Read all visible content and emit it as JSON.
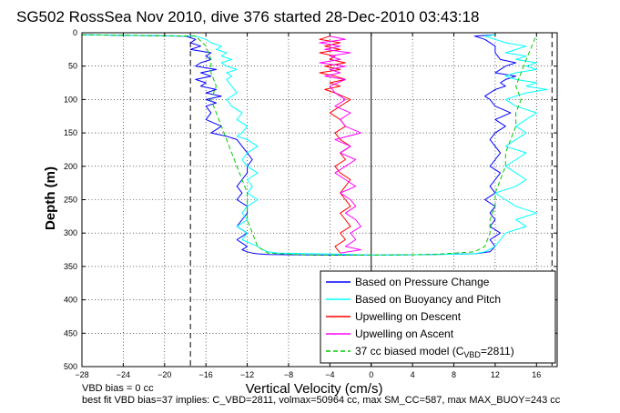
{
  "chart_data": {
    "type": "line",
    "title": "SG502 RossSea Nov 2010, dive 376 started 28-Dec-2010 03:43:18",
    "xlabel": "Vertical Velocity (cm/s)",
    "ylabel": "Depth (m)",
    "xlim": [
      -28,
      18
    ],
    "ylim": [
      500,
      0
    ],
    "y_reversed": true,
    "grid": true,
    "legend_position": "bottom-right",
    "xticks": [
      "−28",
      "−24",
      "−20",
      "−16",
      "−12",
      "−8",
      "−4",
      "0",
      "4",
      "8",
      "12",
      "16"
    ],
    "xtick_values": [
      -28,
      -24,
      -20,
      -16,
      -12,
      -8,
      -4,
      0,
      4,
      8,
      12,
      16
    ],
    "yticks": [
      "0",
      "50",
      "100",
      "150",
      "200",
      "250",
      "300",
      "350",
      "400",
      "450",
      "500"
    ],
    "ytick_values": [
      0,
      50,
      100,
      150,
      200,
      250,
      300,
      350,
      400,
      450,
      500
    ],
    "reference_lines": {
      "dashed_x": [
        -17.5,
        17.5
      ],
      "solid_x": [
        0
      ]
    },
    "series": [
      {
        "name": "Based on Pressure Change",
        "color": "#0000ff",
        "x": [
          -28,
          -18,
          -17,
          -17.5,
          -16.5,
          -17.5,
          -15.5,
          -16,
          -15.5,
          -16.5,
          -17,
          -15,
          -16.5,
          -15.5,
          -17,
          -16,
          -16.5,
          -15,
          -16,
          -14.5,
          -16,
          -15,
          -16,
          -15.5,
          -16,
          -14.5,
          -15.5,
          -14,
          -13,
          -12.5,
          -12,
          -11.5,
          -12,
          -12,
          -12.5,
          -13,
          -12.5,
          -13,
          -12,
          -12,
          -12.5,
          -13,
          -12,
          -13,
          -12,
          -12.5,
          -12,
          -11.5,
          -11,
          -10,
          -5,
          -2,
          0,
          2,
          6,
          10,
          11.5,
          12,
          11.5,
          12.5,
          11.5,
          12,
          11.5,
          12,
          11,
          12,
          11.5,
          12,
          12.5,
          11.5,
          12,
          12.5,
          12,
          11.5,
          12,
          13,
          12,
          13.5,
          12,
          11.5,
          11,
          11.5,
          12,
          13,
          12.5,
          13,
          14,
          12,
          12.5,
          13,
          14,
          12.5,
          12,
          12,
          11,
          10,
          12
        ],
        "y": [
          3,
          5,
          10,
          15,
          20,
          25,
          30,
          35,
          40,
          45,
          50,
          55,
          60,
          65,
          70,
          75,
          80,
          85,
          90,
          95,
          100,
          105,
          110,
          120,
          130,
          140,
          150,
          155,
          160,
          170,
          180,
          190,
          200,
          210,
          220,
          230,
          240,
          250,
          260,
          270,
          280,
          290,
          300,
          310,
          320,
          325,
          328,
          330,
          331,
          332,
          333,
          333,
          333,
          333,
          332,
          331,
          328,
          320,
          310,
          300,
          290,
          280,
          270,
          260,
          250,
          240,
          230,
          220,
          210,
          200,
          190,
          180,
          170,
          160,
          150,
          140,
          130,
          120,
          110,
          100,
          95,
          90,
          85,
          80,
          75,
          70,
          65,
          60,
          55,
          50,
          45,
          40,
          30,
          20,
          10,
          5,
          3
        ]
      },
      {
        "name": "Based on Buoyancy and Pitch",
        "color": "#00ffff",
        "x": [
          -28,
          -17,
          -16,
          -15.5,
          -14.5,
          -15,
          -14,
          -14.5,
          -13.5,
          -14.5,
          -14,
          -13,
          -14,
          -13.5,
          -14,
          -13.5,
          -13,
          -14,
          -13.5,
          -12.5,
          -13,
          -12,
          -12.5,
          -13,
          -12,
          -11,
          -12,
          -12.5,
          -12,
          -11,
          -12,
          -11.5,
          -12,
          -11,
          -12,
          -12.5,
          -12,
          -13,
          -12,
          -12.5,
          -11,
          -10.5,
          -10,
          -9,
          -5,
          -2,
          0,
          2,
          6,
          10,
          11,
          12,
          12.5,
          13,
          15,
          14,
          16,
          14,
          13,
          12,
          14,
          15,
          14,
          13,
          14,
          15,
          13,
          14,
          15,
          14,
          15,
          16,
          14,
          13,
          14,
          15,
          17,
          15,
          16,
          14,
          13,
          14,
          16,
          15,
          16,
          14,
          15,
          13,
          14,
          15,
          13,
          12,
          11,
          12
        ],
        "y": [
          3,
          5,
          10,
          15,
          20,
          25,
          30,
          35,
          40,
          45,
          50,
          55,
          60,
          65,
          70,
          80,
          90,
          100,
          110,
          120,
          130,
          140,
          150,
          155,
          160,
          170,
          180,
          190,
          200,
          210,
          220,
          230,
          240,
          250,
          260,
          270,
          280,
          290,
          300,
          310,
          320,
          325,
          328,
          330,
          331,
          332,
          333,
          333,
          332,
          331,
          328,
          320,
          310,
          300,
          290,
          280,
          270,
          260,
          250,
          240,
          230,
          220,
          210,
          200,
          190,
          180,
          170,
          160,
          150,
          140,
          130,
          120,
          110,
          100,
          95,
          90,
          85,
          80,
          75,
          70,
          65,
          60,
          55,
          50,
          45,
          40,
          35,
          30,
          25,
          20,
          15,
          10,
          5,
          3
        ]
      },
      {
        "name": "Upwelling on Descent",
        "color": "#ff0000",
        "x": [
          -4,
          -5,
          -3,
          -4.5,
          -3,
          -5,
          -3.5,
          -4,
          -2.5,
          -4.5,
          -3,
          -5,
          -3.5,
          -2.5,
          -4,
          -3,
          -4.5,
          -3.5,
          -2,
          -3,
          -4,
          -3,
          -2.5,
          -3.5,
          -3,
          -2,
          -3,
          -2.5,
          -3.5,
          -3,
          -2,
          -2.5,
          -3,
          -2.5,
          -2,
          -3,
          -2.5,
          -2,
          -3,
          -2.5,
          -3.5,
          -3
        ],
        "y": [
          5,
          10,
          15,
          20,
          25,
          30,
          35,
          40,
          45,
          50,
          55,
          60,
          65,
          70,
          75,
          80,
          85,
          90,
          100,
          110,
          120,
          130,
          140,
          150,
          160,
          170,
          180,
          190,
          200,
          210,
          220,
          230,
          240,
          250,
          260,
          270,
          280,
          290,
          300,
          310,
          320,
          330
        ]
      },
      {
        "name": "Upwelling on Ascent",
        "color": "#ff00ff",
        "x": [
          -4,
          -2.5,
          -5,
          -3,
          -4.5,
          -2,
          -4,
          -3,
          -5,
          -2.5,
          -4,
          -3,
          -4.5,
          -2.5,
          -4,
          -3.5,
          -2.5,
          -3.5,
          -2,
          -3,
          -2.5,
          -1,
          -3.5,
          -2,
          -3,
          -1.5,
          -2.5,
          -3.5,
          -2.5,
          -1.5,
          -3,
          -2,
          -1.5,
          -2.5,
          -1.5,
          -1,
          -2,
          -1.5,
          -2.5,
          -1,
          -3
        ],
        "y": [
          5,
          10,
          15,
          20,
          25,
          30,
          35,
          40,
          45,
          50,
          55,
          60,
          65,
          70,
          80,
          90,
          100,
          110,
          120,
          130,
          140,
          150,
          160,
          170,
          180,
          190,
          200,
          210,
          220,
          230,
          240,
          250,
          260,
          270,
          280,
          290,
          300,
          310,
          320,
          325,
          330
        ]
      },
      {
        "name": "37 cc biased model (C_VBD=2811)",
        "color": "#00cc00",
        "dashed": true,
        "x": [
          -28,
          -17,
          -16,
          -15.5,
          -15.5,
          -15,
          -15.5,
          -15,
          -14.5,
          -14,
          -13.5,
          -13,
          -12.5,
          -12,
          -12,
          -12,
          -11.5,
          -11,
          -10,
          -6,
          0,
          6,
          10,
          11,
          11.5,
          11.5,
          12,
          12,
          12.5,
          13,
          13,
          13.5,
          14,
          14,
          14.5,
          14,
          15,
          16
        ],
        "y": [
          3,
          5,
          20,
          40,
          60,
          80,
          100,
          120,
          140,
          160,
          180,
          200,
          220,
          240,
          260,
          280,
          300,
          320,
          330,
          333,
          333,
          332,
          328,
          320,
          300,
          280,
          260,
          240,
          220,
          200,
          180,
          160,
          140,
          120,
          100,
          80,
          40,
          3
        ]
      }
    ]
  },
  "legend": {
    "items": [
      {
        "label": "Based on Pressure Change",
        "color": "#0000ff",
        "dashed": false
      },
      {
        "label": "Based on Buoyancy and Pitch",
        "color": "#00ffff",
        "dashed": false
      },
      {
        "label": "Upwelling on Descent",
        "color": "#ff0000",
        "dashed": false
      },
      {
        "label": "Upwelling on Ascent",
        "color": "#ff00ff",
        "dashed": false
      },
      {
        "label": "37 cc biased model (C",
        "sub": "VBD",
        "tail": "=2811)",
        "color": "#00cc00",
        "dashed": true
      }
    ]
  },
  "footer": {
    "line1": "VBD bias = 0 cc",
    "line2": "best fit VBD bias=37 implies: C_VBD=2811, volmax=50964 cc, max SM_CC=587, max MAX_BUOY=243 cc"
  }
}
